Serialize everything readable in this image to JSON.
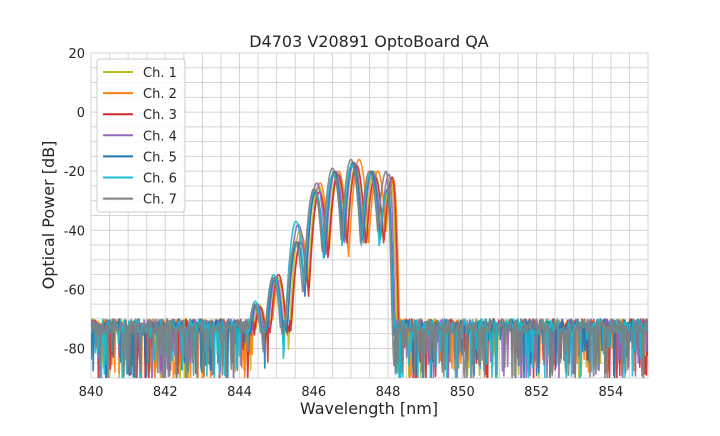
{
  "chart_data": {
    "type": "line",
    "title": "D4703 V20891 OptoBoard QA",
    "xlabel": "Wavelength [nm]",
    "ylabel": "Optical Power [dB]",
    "xlim": [
      840,
      855
    ],
    "ylim": [
      -90,
      20
    ],
    "xticks": [
      840,
      842,
      844,
      846,
      848,
      850,
      852,
      854
    ],
    "yticks": [
      20,
      0,
      -20,
      -40,
      -60,
      -80
    ],
    "grid": true,
    "legend": "top-left",
    "noise_floor_db": -75,
    "series": [
      {
        "name": "Ch. 1",
        "color": "#bcbd22",
        "peaks": [
          [
            844.53,
            -65
          ],
          [
            845.03,
            -56
          ],
          [
            845.63,
            -40
          ],
          [
            846.13,
            -25
          ],
          [
            846.63,
            -21
          ],
          [
            847.13,
            -18
          ],
          [
            847.63,
            -20
          ],
          [
            848.08,
            -22
          ]
        ]
      },
      {
        "name": "Ch. 2",
        "color": "#ff7f0e",
        "peaks": [
          [
            844.57,
            -66
          ],
          [
            845.07,
            -57
          ],
          [
            845.67,
            -42
          ],
          [
            846.17,
            -24
          ],
          [
            846.67,
            -20
          ],
          [
            847.22,
            -16
          ],
          [
            847.72,
            -20
          ],
          [
            848.15,
            -23
          ]
        ]
      },
      {
        "name": "Ch. 3",
        "color": "#d62728",
        "peaks": [
          [
            844.55,
            -66
          ],
          [
            845.05,
            -55
          ],
          [
            845.65,
            -44
          ],
          [
            846.15,
            -27
          ],
          [
            846.65,
            -21
          ],
          [
            847.15,
            -18
          ],
          [
            847.65,
            -22
          ],
          [
            848.12,
            -22
          ]
        ]
      },
      {
        "name": "Ch. 4",
        "color": "#9467bd",
        "peaks": [
          [
            844.48,
            -65
          ],
          [
            844.98,
            -56
          ],
          [
            845.58,
            -38
          ],
          [
            846.08,
            -24
          ],
          [
            846.58,
            -20
          ],
          [
            847.08,
            -17
          ],
          [
            847.58,
            -20
          ],
          [
            848.03,
            -21
          ]
        ]
      },
      {
        "name": "Ch. 5",
        "color": "#1f77b4",
        "peaks": [
          [
            844.45,
            -65
          ],
          [
            844.95,
            -56
          ],
          [
            845.55,
            -44
          ],
          [
            846.05,
            -27
          ],
          [
            846.55,
            -20
          ],
          [
            847.05,
            -17
          ],
          [
            847.55,
            -20
          ],
          [
            848.0,
            -26
          ]
        ]
      },
      {
        "name": "Ch. 6",
        "color": "#17becf",
        "peaks": [
          [
            844.42,
            -64
          ],
          [
            844.92,
            -55
          ],
          [
            845.52,
            -37
          ],
          [
            846.02,
            -26
          ],
          [
            846.52,
            -21
          ],
          [
            847.02,
            -18
          ],
          [
            847.52,
            -21
          ],
          [
            847.98,
            -27
          ]
        ]
      },
      {
        "name": "Ch. 7",
        "color": "#7f7f7f",
        "peaks": [
          [
            844.4,
            -65
          ],
          [
            844.9,
            -56
          ],
          [
            845.5,
            -44
          ],
          [
            846.0,
            -26
          ],
          [
            846.5,
            -19
          ],
          [
            847.0,
            -16
          ],
          [
            847.5,
            -20
          ],
          [
            847.95,
            -20
          ]
        ]
      }
    ]
  }
}
